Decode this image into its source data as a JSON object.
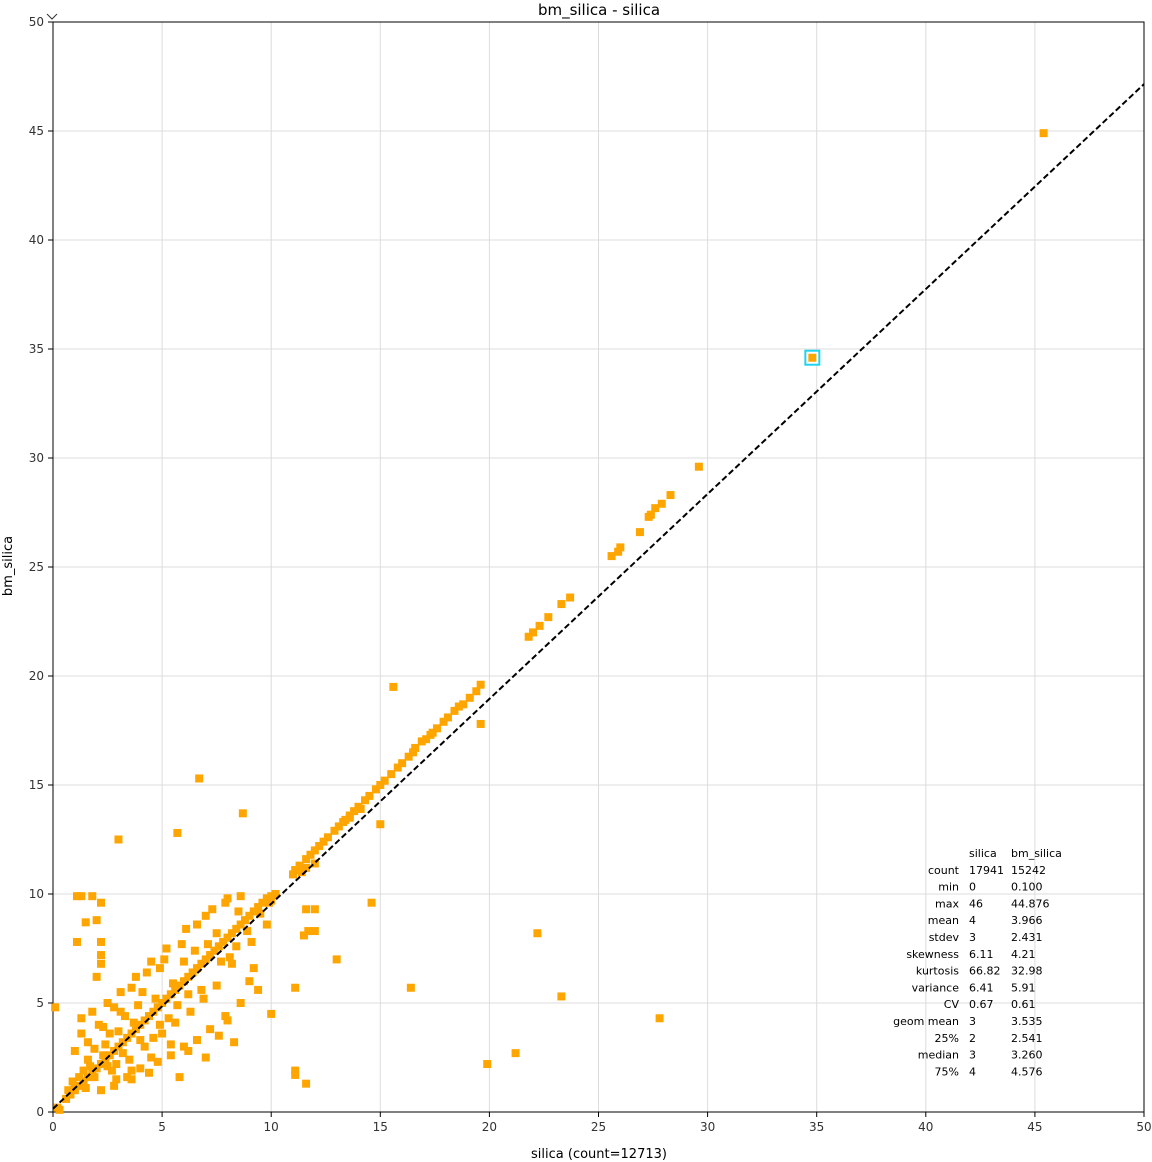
{
  "chart_data": {
    "type": "scatter",
    "title": "bm_silica - silica",
    "xlabel": "silica (count=12713)",
    "ylabel": "bm_silica",
    "xlim": [
      0,
      50
    ],
    "ylim": [
      0,
      50
    ],
    "xticks": [
      0,
      5,
      10,
      15,
      20,
      25,
      30,
      35,
      40,
      45,
      50
    ],
    "yticks": [
      0,
      5,
      10,
      15,
      20,
      25,
      30,
      35,
      40,
      45,
      50
    ],
    "grid": true,
    "marker_color": "#FFA500",
    "highlight_color": "#22D3EE",
    "regression_line": {
      "style": "dashed",
      "color": "#000000",
      "slope": 0.94,
      "intercept": 0.15
    },
    "highlighted_point": {
      "x": 34.8,
      "y": 34.6
    },
    "points": [
      [
        45.4,
        44.9
      ],
      [
        34.8,
        34.6
      ],
      [
        29.6,
        29.6
      ],
      [
        28.3,
        28.3
      ],
      [
        27.9,
        27.9
      ],
      [
        27.6,
        27.7
      ],
      [
        27.3,
        27.3
      ],
      [
        27.4,
        27.4
      ],
      [
        26.9,
        26.6
      ],
      [
        26.0,
        25.9
      ],
      [
        25.9,
        25.7
      ],
      [
        25.6,
        25.5
      ],
      [
        23.7,
        23.6
      ],
      [
        23.3,
        23.3
      ],
      [
        22.7,
        22.7
      ],
      [
        22.3,
        22.3
      ],
      [
        22.0,
        22.0
      ],
      [
        21.8,
        21.8
      ],
      [
        19.6,
        19.6
      ],
      [
        19.4,
        19.3
      ],
      [
        19.1,
        19.0
      ],
      [
        18.8,
        18.7
      ],
      [
        18.6,
        18.6
      ],
      [
        18.4,
        18.4
      ],
      [
        18.1,
        18.1
      ],
      [
        17.9,
        17.9
      ],
      [
        17.6,
        17.6
      ],
      [
        17.4,
        17.4
      ],
      [
        17.1,
        17.1
      ],
      [
        16.9,
        17.0
      ],
      [
        16.6,
        16.7
      ],
      [
        16.3,
        16.3
      ],
      [
        16.0,
        16.0
      ],
      [
        15.8,
        15.8
      ],
      [
        15.5,
        15.5
      ],
      [
        15.2,
        15.2
      ],
      [
        15.0,
        15.0
      ],
      [
        14.8,
        14.8
      ],
      [
        14.5,
        14.5
      ],
      [
        14.3,
        14.3
      ],
      [
        14.0,
        14.0
      ],
      [
        13.8,
        13.8
      ],
      [
        13.6,
        13.6
      ],
      [
        13.4,
        13.4
      ],
      [
        13.1,
        13.1
      ],
      [
        12.9,
        12.9
      ],
      [
        12.6,
        12.6
      ],
      [
        12.4,
        12.4
      ],
      [
        12.2,
        12.2
      ],
      [
        12.0,
        12.0
      ],
      [
        11.8,
        11.8
      ],
      [
        11.6,
        11.6
      ],
      [
        11.3,
        11.3
      ],
      [
        11.1,
        11.1
      ],
      [
        11.0,
        10.9
      ],
      [
        13.3,
        13.3
      ],
      [
        13.6,
        13.5
      ],
      [
        14.1,
        13.9
      ],
      [
        15.6,
        19.5
      ],
      [
        19.6,
        17.8
      ],
      [
        15.0,
        13.2
      ],
      [
        17.3,
        17.3
      ],
      [
        16.5,
        16.5
      ],
      [
        12.0,
        11.4
      ],
      [
        11.6,
        11.2
      ],
      [
        11.4,
        11.0
      ],
      [
        10.2,
        10.0
      ],
      [
        10.0,
        9.9
      ],
      [
        9.8,
        9.8
      ],
      [
        9.6,
        9.6
      ],
      [
        9.4,
        9.4
      ],
      [
        9.2,
        9.2
      ],
      [
        9.0,
        9.0
      ],
      [
        8.8,
        8.8
      ],
      [
        8.6,
        8.6
      ],
      [
        8.4,
        8.4
      ],
      [
        8.2,
        8.2
      ],
      [
        8.0,
        8.0
      ],
      [
        7.8,
        7.8
      ],
      [
        7.6,
        7.6
      ],
      [
        7.4,
        7.4
      ],
      [
        7.2,
        7.2
      ],
      [
        7.0,
        7.0
      ],
      [
        6.8,
        6.8
      ],
      [
        6.6,
        6.6
      ],
      [
        6.4,
        6.4
      ],
      [
        6.2,
        6.2
      ],
      [
        6.0,
        6.0
      ],
      [
        5.8,
        5.8
      ],
      [
        5.6,
        5.6
      ],
      [
        5.4,
        5.4
      ],
      [
        5.2,
        5.2
      ],
      [
        5.0,
        5.0
      ],
      [
        4.8,
        4.8
      ],
      [
        4.6,
        4.6
      ],
      [
        4.4,
        4.4
      ],
      [
        4.2,
        4.2
      ],
      [
        4.0,
        4.0
      ],
      [
        3.8,
        3.8
      ],
      [
        3.6,
        3.6
      ],
      [
        3.4,
        3.4
      ],
      [
        3.2,
        3.2
      ],
      [
        3.0,
        3.0
      ],
      [
        2.8,
        2.8
      ],
      [
        2.6,
        2.6
      ],
      [
        2.4,
        2.4
      ],
      [
        2.2,
        2.2
      ],
      [
        2.0,
        2.0
      ],
      [
        1.8,
        1.8
      ],
      [
        1.6,
        1.6
      ],
      [
        1.4,
        1.4
      ],
      [
        1.2,
        1.2
      ],
      [
        1.0,
        1.0
      ],
      [
        0.8,
        0.8
      ],
      [
        0.6,
        0.6
      ],
      [
        0.2,
        0.2
      ],
      [
        0.1,
        4.8
      ],
      [
        6.7,
        15.3
      ],
      [
        8.7,
        13.7
      ],
      [
        5.7,
        12.8
      ],
      [
        3.0,
        12.5
      ],
      [
        1.1,
        9.9
      ],
      [
        1.3,
        9.9
      ],
      [
        1.8,
        9.9
      ],
      [
        2.2,
        9.6
      ],
      [
        1.5,
        8.7
      ],
      [
        2.0,
        8.8
      ],
      [
        1.1,
        7.8
      ],
      [
        2.2,
        7.8
      ],
      [
        2.2,
        7.2
      ],
      [
        2.2,
        6.8
      ],
      [
        2.0,
        6.2
      ],
      [
        14.6,
        9.6
      ],
      [
        12.0,
        9.3
      ],
      [
        11.6,
        9.3
      ],
      [
        11.7,
        8.3
      ],
      [
        11.5,
        8.1
      ],
      [
        12.0,
        8.3
      ],
      [
        13.0,
        7.0
      ],
      [
        22.2,
        8.2
      ],
      [
        11.1,
        5.7
      ],
      [
        16.4,
        5.7
      ],
      [
        23.3,
        5.3
      ],
      [
        27.8,
        4.3
      ],
      [
        10.0,
        4.5
      ],
      [
        9.4,
        5.6
      ],
      [
        9.0,
        6.0
      ],
      [
        8.6,
        5.0
      ],
      [
        8.0,
        4.2
      ],
      [
        7.2,
        3.8
      ],
      [
        6.6,
        3.3
      ],
      [
        6.0,
        3.0
      ],
      [
        5.4,
        2.6
      ],
      [
        4.8,
        2.3
      ],
      [
        4.0,
        2.0
      ],
      [
        3.4,
        1.6
      ],
      [
        2.8,
        1.2
      ],
      [
        21.2,
        2.7
      ],
      [
        19.9,
        2.2
      ],
      [
        11.1,
        1.9
      ],
      [
        11.1,
        1.7
      ],
      [
        11.6,
        1.3
      ],
      [
        7.0,
        2.5
      ],
      [
        5.8,
        1.6
      ],
      [
        4.4,
        1.8
      ],
      [
        3.6,
        1.5
      ],
      [
        2.2,
        1.0
      ],
      [
        1.5,
        1.1
      ],
      [
        1.0,
        1.1
      ],
      [
        0.3,
        0.1
      ],
      [
        1.3,
        4.3
      ],
      [
        1.8,
        4.6
      ],
      [
        2.5,
        5.0
      ],
      [
        3.1,
        5.5
      ],
      [
        3.8,
        6.2
      ],
      [
        4.5,
        6.9
      ],
      [
        5.2,
        7.5
      ],
      [
        6.1,
        8.4
      ],
      [
        7.0,
        9.0
      ],
      [
        7.9,
        9.6
      ],
      [
        8.6,
        9.9
      ],
      [
        9.2,
        6.6
      ],
      [
        8.2,
        6.8
      ],
      [
        7.5,
        5.8
      ],
      [
        6.9,
        5.2
      ],
      [
        6.3,
        4.6
      ],
      [
        5.6,
        4.1
      ],
      [
        5.0,
        3.6
      ],
      [
        4.2,
        3.0
      ],
      [
        3.5,
        2.4
      ],
      [
        2.7,
        1.9
      ],
      [
        4.9,
        6.6
      ],
      [
        4.1,
        5.5
      ],
      [
        3.3,
        4.4
      ],
      [
        2.6,
        3.6
      ],
      [
        1.9,
        2.9
      ],
      [
        1.6,
        2.4
      ],
      [
        2.9,
        2.2
      ],
      [
        3.9,
        4.9
      ],
      [
        5.5,
        5.9
      ],
      [
        6.5,
        7.4
      ],
      [
        7.5,
        8.2
      ],
      [
        8.1,
        7.1
      ],
      [
        6.8,
        5.6
      ],
      [
        5.3,
        4.3
      ],
      [
        4.6,
        3.4
      ],
      [
        3.0,
        3.7
      ],
      [
        2.3,
        2.6
      ],
      [
        1.4,
        1.9
      ],
      [
        0.9,
        1.4
      ],
      [
        9.8,
        8.6
      ],
      [
        9.1,
        7.8
      ],
      [
        8.4,
        7.6
      ],
      [
        7.7,
        6.9
      ],
      [
        6.2,
        5.4
      ],
      [
        4.7,
        5.2
      ],
      [
        3.7,
        4.1
      ],
      [
        2.4,
        3.1
      ],
      [
        1.7,
        2.1
      ],
      [
        1.2,
        1.6
      ],
      [
        0.7,
        1.0
      ],
      [
        2.1,
        4.0
      ],
      [
        2.8,
        4.8
      ],
      [
        3.6,
        5.7
      ],
      [
        4.3,
        6.4
      ],
      [
        5.1,
        7.0
      ],
      [
        5.9,
        7.7
      ],
      [
        6.6,
        8.6
      ],
      [
        7.3,
        9.3
      ],
      [
        8.0,
        9.8
      ],
      [
        9.5,
        9.1
      ],
      [
        8.9,
        8.3
      ],
      [
        5.7,
        4.9
      ],
      [
        4.9,
        4.0
      ],
      [
        4.0,
        3.3
      ],
      [
        3.2,
        2.7
      ],
      [
        2.5,
        2.1
      ],
      [
        1.9,
        1.6
      ],
      [
        7.9,
        4.4
      ],
      [
        8.3,
        3.2
      ],
      [
        7.6,
        3.5
      ],
      [
        6.2,
        2.8
      ],
      [
        5.4,
        3.1
      ],
      [
        4.5,
        2.5
      ],
      [
        3.6,
        1.9
      ],
      [
        2.9,
        1.5
      ],
      [
        1.3,
        3.6
      ],
      [
        1.0,
        2.8
      ],
      [
        1.6,
        3.2
      ],
      [
        2.3,
        3.9
      ],
      [
        3.1,
        4.6
      ],
      [
        6.0,
        6.9
      ],
      [
        7.1,
        7.7
      ],
      [
        8.5,
        9.2
      ],
      [
        9.9,
        9.6
      ],
      [
        10.0,
        9.7
      ]
    ],
    "stats": {
      "columns": [
        "silica",
        "bm_silica"
      ],
      "rows": [
        {
          "label": "count",
          "values": [
            "17941",
            "15242"
          ]
        },
        {
          "label": "min",
          "values": [
            "0",
            "0.100"
          ]
        },
        {
          "label": "max",
          "values": [
            "46",
            "44.876"
          ]
        },
        {
          "label": "mean",
          "values": [
            "4",
            "3.966"
          ]
        },
        {
          "label": "stdev",
          "values": [
            "3",
            "2.431"
          ]
        },
        {
          "label": "skewness",
          "values": [
            "6.11",
            "4.21"
          ]
        },
        {
          "label": "kurtosis",
          "values": [
            "66.82",
            "32.98"
          ]
        },
        {
          "label": "variance",
          "values": [
            "6.41",
            "5.91"
          ]
        },
        {
          "label": "CV",
          "values": [
            "0.67",
            "0.61"
          ]
        },
        {
          "label": "geom mean",
          "values": [
            "3",
            "3.535"
          ]
        },
        {
          "label": "25%",
          "values": [
            "2",
            "2.541"
          ]
        },
        {
          "label": "median",
          "values": [
            "3",
            "3.260"
          ]
        },
        {
          "label": "75%",
          "values": [
            "4",
            "4.576"
          ]
        }
      ]
    }
  }
}
